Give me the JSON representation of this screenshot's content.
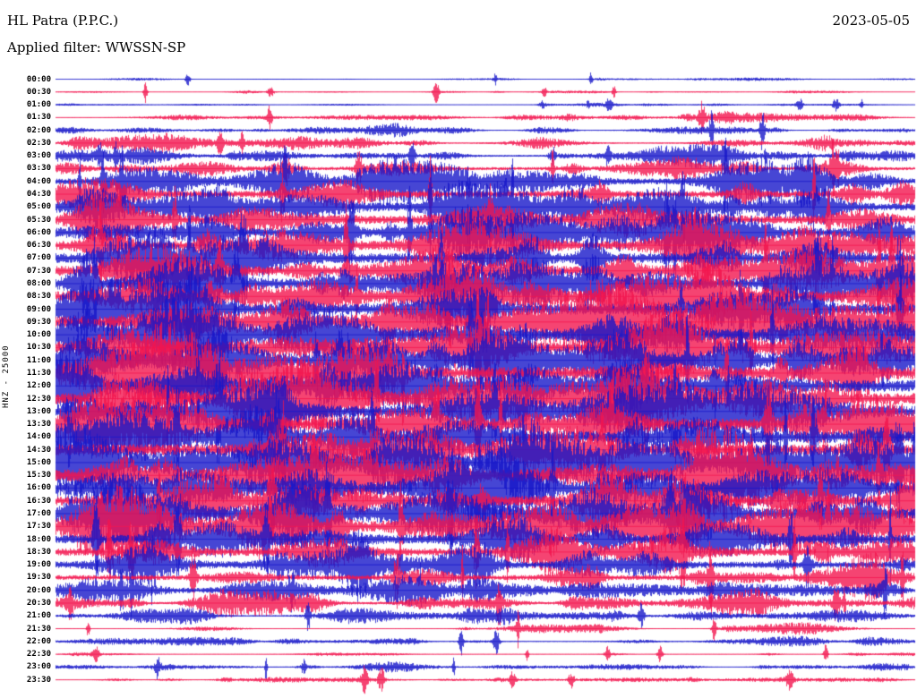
{
  "header": {
    "station": "HL Patra (P.P.C.)",
    "date": "2023-05-05",
    "filter_label": "Applied filter: WWSSN-SP"
  },
  "y_axis_label": "HNZ - 25000",
  "chart_data": {
    "type": "seismogram-helicorder",
    "title": "HL Patra (P.P.C.)",
    "date": "2023-05-05",
    "filter": "WWSSN-SP",
    "channel": "HNZ",
    "scale": 25000,
    "minutes_per_row": 30,
    "colors": {
      "blue": "#1717c9",
      "red": "#f2144e"
    },
    "rows": [
      {
        "time": "00:00",
        "color": "blue",
        "amplitude": 0.05
      },
      {
        "time": "00:30",
        "color": "red",
        "amplitude": 0.07
      },
      {
        "time": "01:00",
        "color": "blue",
        "amplitude": 0.06
      },
      {
        "time": "01:30",
        "color": "red",
        "amplitude": 0.12
      },
      {
        "time": "02:00",
        "color": "blue",
        "amplitude": 0.14
      },
      {
        "time": "02:30",
        "color": "red",
        "amplitude": 0.2
      },
      {
        "time": "03:00",
        "color": "blue",
        "amplitude": 0.26
      },
      {
        "time": "03:30",
        "color": "red",
        "amplitude": 0.4
      },
      {
        "time": "04:00",
        "color": "blue",
        "amplitude": 0.6
      },
      {
        "time": "04:30",
        "color": "red",
        "amplitude": 0.65
      },
      {
        "time": "05:00",
        "color": "blue",
        "amplitude": 0.7
      },
      {
        "time": "05:30",
        "color": "red",
        "amplitude": 0.75
      },
      {
        "time": "06:00",
        "color": "blue",
        "amplitude": 0.8
      },
      {
        "time": "06:30",
        "color": "red",
        "amplitude": 0.78
      },
      {
        "time": "07:00",
        "color": "blue",
        "amplitude": 0.85
      },
      {
        "time": "07:30",
        "color": "red",
        "amplitude": 0.85
      },
      {
        "time": "08:00",
        "color": "blue",
        "amplitude": 0.88
      },
      {
        "time": "08:30",
        "color": "red",
        "amplitude": 0.88
      },
      {
        "time": "09:00",
        "color": "blue",
        "amplitude": 0.92
      },
      {
        "time": "09:30",
        "color": "red",
        "amplitude": 0.92
      },
      {
        "time": "10:00",
        "color": "blue",
        "amplitude": 0.95
      },
      {
        "time": "10:30",
        "color": "red",
        "amplitude": 0.95
      },
      {
        "time": "11:00",
        "color": "blue",
        "amplitude": 1.0
      },
      {
        "time": "11:30",
        "color": "red",
        "amplitude": 0.97
      },
      {
        "time": "12:00",
        "color": "blue",
        "amplitude": 0.95
      },
      {
        "time": "12:30",
        "color": "red",
        "amplitude": 0.93
      },
      {
        "time": "13:00",
        "color": "blue",
        "amplitude": 0.92
      },
      {
        "time": "13:30",
        "color": "red",
        "amplitude": 0.92
      },
      {
        "time": "14:00",
        "color": "blue",
        "amplitude": 0.95
      },
      {
        "time": "14:30",
        "color": "red",
        "amplitude": 0.92
      },
      {
        "time": "15:00",
        "color": "blue",
        "amplitude": 0.92
      },
      {
        "time": "15:30",
        "color": "red",
        "amplitude": 0.88
      },
      {
        "time": "16:00",
        "color": "blue",
        "amplitude": 0.88
      },
      {
        "time": "16:30",
        "color": "red",
        "amplitude": 0.85
      },
      {
        "time": "17:00",
        "color": "blue",
        "amplitude": 0.88
      },
      {
        "time": "17:30",
        "color": "red",
        "amplitude": 0.85
      },
      {
        "time": "18:00",
        "color": "blue",
        "amplitude": 0.8
      },
      {
        "time": "18:30",
        "color": "red",
        "amplitude": 0.72
      },
      {
        "time": "19:00",
        "color": "blue",
        "amplitude": 0.65
      },
      {
        "time": "19:30",
        "color": "red",
        "amplitude": 0.55
      },
      {
        "time": "20:00",
        "color": "blue",
        "amplitude": 0.42
      },
      {
        "time": "20:30",
        "color": "red",
        "amplitude": 0.32
      },
      {
        "time": "21:00",
        "color": "blue",
        "amplitude": 0.22
      },
      {
        "time": "21:30",
        "color": "red",
        "amplitude": 0.13
      },
      {
        "time": "22:00",
        "color": "blue",
        "amplitude": 0.16
      },
      {
        "time": "22:30",
        "color": "red",
        "amplitude": 0.1
      },
      {
        "time": "23:00",
        "color": "blue",
        "amplitude": 0.12
      },
      {
        "time": "23:30",
        "color": "red",
        "amplitude": 0.09
      }
    ]
  }
}
